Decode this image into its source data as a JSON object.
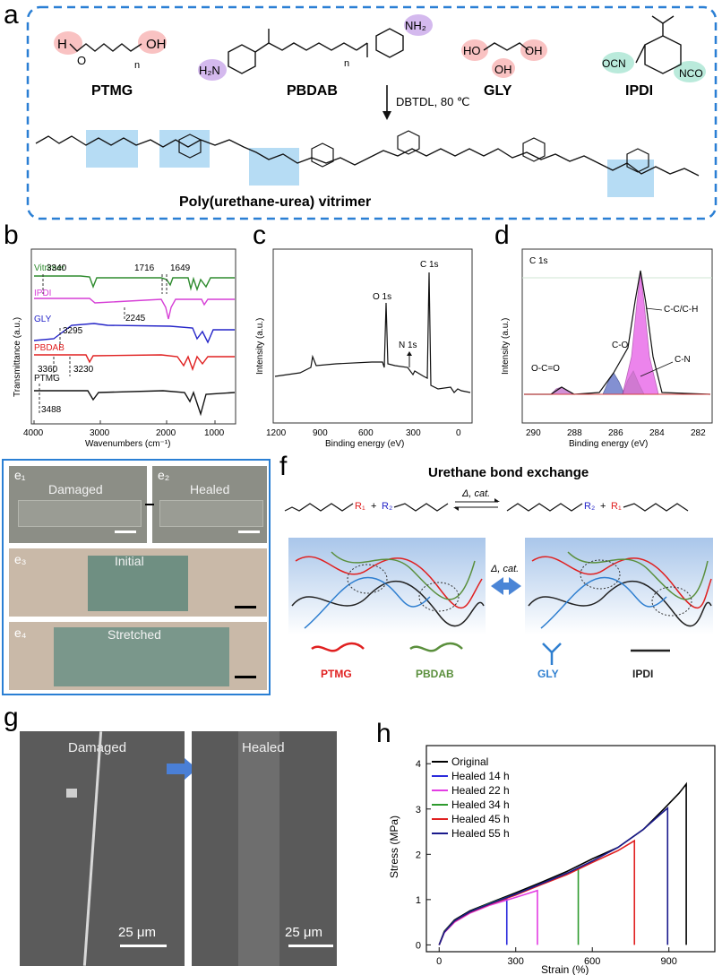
{
  "panel_labels": {
    "a": "a",
    "b": "b",
    "c": "c",
    "d": "d",
    "e": "e",
    "f": "f",
    "g": "g",
    "h": "h"
  },
  "panel_a": {
    "monomers": [
      "PTMG",
      "PBDAB",
      "GLY",
      "IPDI"
    ],
    "reaction_condition": "DBTDL, 80 ℃",
    "product": "Poly(urethane-urea) vitrimer",
    "atoms": {
      "H": "H",
      "O": "O",
      "OH": "OH",
      "n": "n",
      "H2N": "H₂N",
      "NH2": "NH₂",
      "HO": "HO",
      "OCN": "OCN",
      "NCO": "NCO",
      "N": "N"
    }
  },
  "panel_b": {
    "ylabel": "Transmittance (a.u.)",
    "xlabel": "Wavenumbers (cm⁻¹)",
    "ticks": [
      "4000",
      "3000",
      "2000",
      "1000"
    ],
    "colors": {
      "vitrimer": "#2e8b2e",
      "ipdi": "#d63fd6",
      "gly": "#2424c8",
      "pbdab": "#e02020",
      "ptmg": "#111111"
    },
    "series_names": [
      "Vitrimer",
      "IPDI",
      "GLY",
      "PBDAB",
      "PTMG"
    ],
    "peak_labels": [
      "3340",
      "1716",
      "1649",
      "2245",
      "3295",
      "3360",
      "3230",
      "3488"
    ]
  },
  "panel_c": {
    "ylabel": "Intensity (a.u.)",
    "xlabel": "Binding energy (eV)",
    "ticks": [
      "1200",
      "900",
      "600",
      "300",
      "0"
    ],
    "peaks": [
      "O 1s",
      "N 1s",
      "C 1s"
    ]
  },
  "panel_d": {
    "ylabel": "Intensity (a.u.)",
    "xlabel": "Binding energy (eV)",
    "title": "C 1s",
    "ticks": [
      "290",
      "288",
      "286",
      "284",
      "282"
    ],
    "components": [
      "C-C/C-H",
      "C-O",
      "C-N",
      "O-C=O"
    ]
  },
  "panel_e": {
    "sub_labels": [
      "e₁",
      "e₂",
      "e₃",
      "e₄"
    ],
    "captions": [
      "Damaged",
      "Healed",
      "Initial",
      "Stretched"
    ]
  },
  "panel_f": {
    "title": "Urethane bond exchange",
    "condition": "Δ, cat.",
    "r_groups": [
      "R₁",
      "R₂",
      "R₂",
      "R₁"
    ],
    "legend": [
      "PTMG",
      "PBDAB",
      "GLY",
      "IPDI"
    ],
    "legend_colors": [
      "#e02020",
      "#5a8f3c",
      "#2f7fd0",
      "#222222"
    ]
  },
  "panel_g": {
    "captions": [
      "Damaged",
      "Healed"
    ],
    "scale_bars": [
      "25 μm",
      "25 μm"
    ]
  },
  "chart_data": {
    "type": "line",
    "xlabel": "Strain (%)",
    "ylabel": "Stress (MPa)",
    "xlim": [
      -50,
      1080
    ],
    "ylim": [
      -0.15,
      4.4
    ],
    "xticks": [
      0,
      300,
      600,
      900
    ],
    "yticks": [
      0,
      1,
      2,
      3,
      4
    ],
    "legend_position": "top-left",
    "series": [
      {
        "name": "Original",
        "color": "#000000",
        "points": [
          [
            0,
            0
          ],
          [
            20,
            0.3
          ],
          [
            60,
            0.55
          ],
          [
            120,
            0.75
          ],
          [
            200,
            0.93
          ],
          [
            300,
            1.15
          ],
          [
            400,
            1.38
          ],
          [
            500,
            1.62
          ],
          [
            600,
            1.9
          ],
          [
            700,
            2.15
          ],
          [
            800,
            2.55
          ],
          [
            880,
            3.0
          ],
          [
            940,
            3.35
          ],
          [
            968,
            3.55
          ]
        ],
        "break_strain": 968
      },
      {
        "name": "Healed 14 h",
        "color": "#2b2bdc",
        "points": [
          [
            0,
            0
          ],
          [
            20,
            0.28
          ],
          [
            60,
            0.52
          ],
          [
            120,
            0.72
          ],
          [
            200,
            0.9
          ],
          [
            265,
            1.02
          ]
        ],
        "break_strain": 265
      },
      {
        "name": "Healed 22 h",
        "color": "#e33de3",
        "points": [
          [
            0,
            0
          ],
          [
            20,
            0.27
          ],
          [
            60,
            0.5
          ],
          [
            120,
            0.7
          ],
          [
            200,
            0.88
          ],
          [
            300,
            1.05
          ],
          [
            385,
            1.2
          ]
        ],
        "break_strain": 385
      },
      {
        "name": "Healed 34 h",
        "color": "#2e9a2e",
        "points": [
          [
            0,
            0
          ],
          [
            20,
            0.29
          ],
          [
            60,
            0.53
          ],
          [
            120,
            0.73
          ],
          [
            200,
            0.92
          ],
          [
            300,
            1.12
          ],
          [
            400,
            1.35
          ],
          [
            500,
            1.58
          ],
          [
            545,
            1.68
          ]
        ],
        "break_strain": 545
      },
      {
        "name": "Healed 45 h",
        "color": "#e02020",
        "points": [
          [
            0,
            0
          ],
          [
            20,
            0.28
          ],
          [
            60,
            0.52
          ],
          [
            120,
            0.72
          ],
          [
            200,
            0.9
          ],
          [
            300,
            1.1
          ],
          [
            400,
            1.33
          ],
          [
            500,
            1.55
          ],
          [
            600,
            1.82
          ],
          [
            700,
            2.08
          ],
          [
            765,
            2.3
          ]
        ],
        "break_strain": 765
      },
      {
        "name": "Healed 55 h",
        "color": "#1a1a8c",
        "points": [
          [
            0,
            0
          ],
          [
            20,
            0.28
          ],
          [
            60,
            0.53
          ],
          [
            120,
            0.73
          ],
          [
            200,
            0.91
          ],
          [
            300,
            1.12
          ],
          [
            400,
            1.35
          ],
          [
            500,
            1.58
          ],
          [
            600,
            1.85
          ],
          [
            700,
            2.15
          ],
          [
            800,
            2.55
          ],
          [
            860,
            2.85
          ],
          [
            895,
            3.02
          ]
        ],
        "break_strain": 895
      }
    ]
  }
}
